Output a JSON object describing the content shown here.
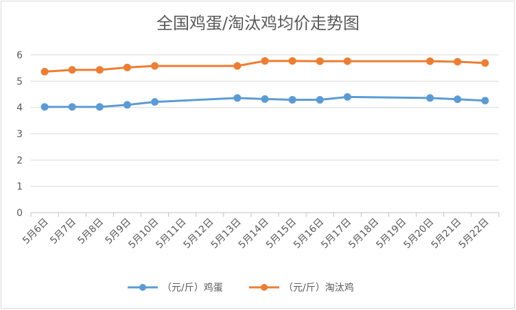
{
  "chart_data": {
    "type": "line",
    "title": "全国鸡蛋/淘汰鸡均价走势图",
    "xlabel": "",
    "ylabel": "",
    "ylim": [
      0,
      6
    ],
    "yticks": [
      0,
      1,
      2,
      3,
      4,
      5,
      6
    ],
    "grid": true,
    "legend_position": "bottom",
    "categories": [
      "5月6日",
      "5月7日",
      "5月8日",
      "5月9日",
      "5月10日",
      "5月11日",
      "5月12日",
      "5月13日",
      "5月14日",
      "5月15日",
      "5月16日",
      "5月17日",
      "5月18日",
      "5月19日",
      "5月20日",
      "5月21日",
      "5月22日"
    ],
    "series": [
      {
        "name": "（元/斤）鸡蛋",
        "color": "#5b9bd5",
        "values": [
          4.02,
          4.02,
          4.02,
          4.1,
          4.21,
          null,
          null,
          4.36,
          4.32,
          4.29,
          4.29,
          4.4,
          null,
          null,
          4.36,
          4.31,
          4.26
        ]
      },
      {
        "name": "（元/斤）淘汰鸡",
        "color": "#ed7d31",
        "values": [
          5.36,
          5.43,
          5.43,
          5.52,
          5.58,
          null,
          null,
          5.58,
          5.77,
          5.77,
          5.76,
          5.76,
          null,
          null,
          5.76,
          5.74,
          5.69
        ]
      }
    ]
  }
}
